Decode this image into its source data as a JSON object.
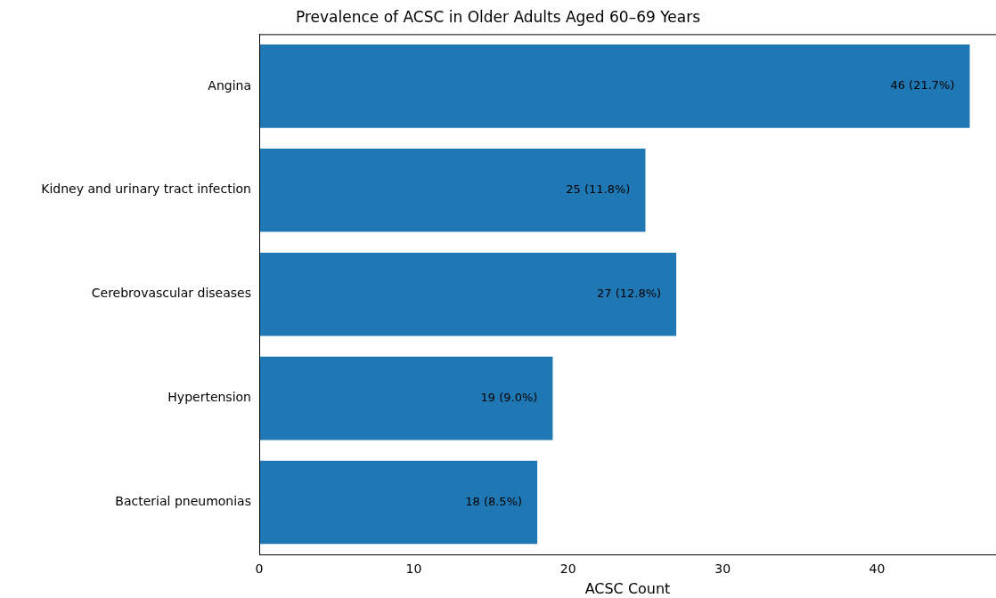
{
  "chart_data": {
    "type": "bar",
    "orientation": "horizontal",
    "title": "Prevalence of ACSC in Older Adults Aged 60–69 Years",
    "xlabel": "ACSC Count",
    "categories": [
      "Angina",
      "Kidney and urinary tract infection",
      "Cerebrovascular diseases",
      "Hypertension",
      "Bacterial pneumonias"
    ],
    "values": [
      46,
      25,
      27,
      19,
      18
    ],
    "value_labels": [
      "46 (21.7%)",
      "25 (11.8%)",
      "27 (12.8%)",
      "19 (9.0%)",
      "18 (8.5%)"
    ],
    "color": "#1f77b4",
    "xlim": [
      0,
      47.7
    ],
    "xticks": [
      0,
      10,
      20,
      30,
      40
    ],
    "grid": false,
    "legend": false
  }
}
